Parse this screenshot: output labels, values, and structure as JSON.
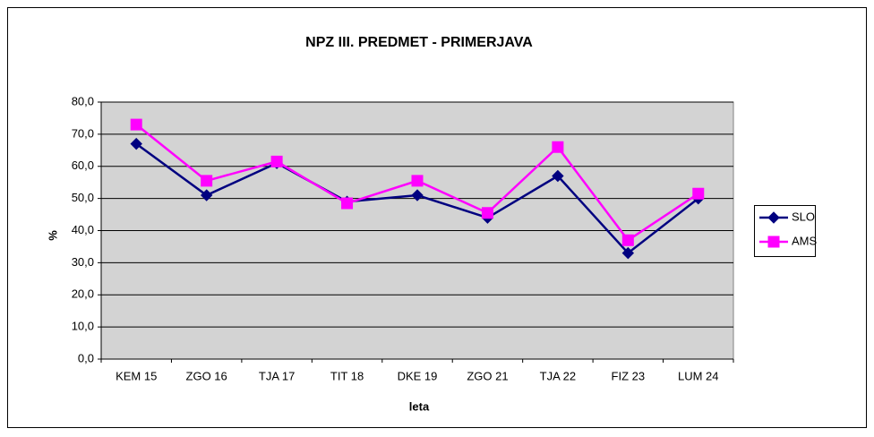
{
  "chart_data": {
    "type": "line",
    "title": "NPZ III. PREDMET - PRIMERJAVA",
    "x_label": "leta",
    "y_label": "%",
    "categories": [
      "KEM 15",
      "ZGO 16",
      "TJA 17",
      "TIT 18",
      "DKE 19",
      "ZGO 21",
      "TJA 22",
      "FIZ 23",
      "LUM 24"
    ],
    "series": [
      {
        "name": "SLO",
        "color": "#000080",
        "marker": "diamond",
        "values": [
          67,
          51,
          61,
          49,
          51,
          44,
          57,
          33,
          50
        ]
      },
      {
        "name": "AMS",
        "color": "#ff00ff",
        "marker": "square",
        "values": [
          73,
          55.5,
          61.5,
          48.5,
          55.5,
          45.5,
          66,
          37,
          51.5
        ]
      }
    ],
    "ylim": [
      0,
      80
    ],
    "yticks": [
      {
        "value": 0,
        "label": "0,0"
      },
      {
        "value": 10,
        "label": "10,0"
      },
      {
        "value": 20,
        "label": "20,0"
      },
      {
        "value": 30,
        "label": "30,0"
      },
      {
        "value": 40,
        "label": "40,0"
      },
      {
        "value": 50,
        "label": "50,0"
      },
      {
        "value": 60,
        "label": "60,0"
      },
      {
        "value": 70,
        "label": "70,0"
      },
      {
        "value": 80,
        "label": "80,0"
      }
    ],
    "grid": true,
    "legend": "right"
  }
}
